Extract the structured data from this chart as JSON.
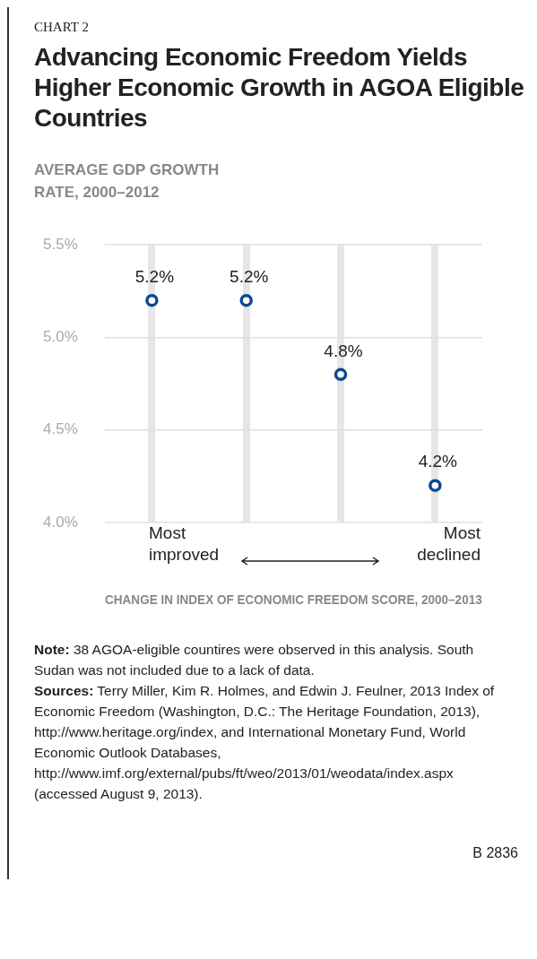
{
  "chart_data": {
    "type": "scatter",
    "subtitle": "CHART 2",
    "title": "Advancing Economic Freedom Yields Higher Economic Growth in AGOA Eligible Countries",
    "ylabel": "AVERAGE GDP GROWTH RATE, 2000–2012",
    "xlabel": "CHANGE IN INDEX OF ECONOMIC FREEDOM SCORE, 2000–2013",
    "categories": [
      null,
      null,
      null,
      null
    ],
    "series": [
      {
        "color": "#0b4a8f",
        "values": [
          5.2,
          5.2,
          4.8,
          4.2
        ],
        "value_labels": [
          "5.2%",
          "5.2%",
          "4.8%",
          "4.2%"
        ]
      }
    ],
    "ylim": [
      4.0,
      5.5
    ],
    "yticks": [
      {
        "value": 4.0,
        "label": "4.0%"
      },
      {
        "value": 4.5,
        "label": "4.5%"
      },
      {
        "value": 5.0,
        "label": "5.0%"
      },
      {
        "value": 5.5,
        "label": "5.5%"
      }
    ],
    "grid": true,
    "marker": "circle",
    "tick_labels": "y",
    "annotations": [
      "Most improved",
      "Most declined",
      "Note: 38 AGOA-eligible countires were observed in this analysis. South Sudan was not included due to a lack of data.",
      "Sources: Terry Miller, Kim R. Holmes, and Edwin J. Feulner, 2013 Index of Economic Freedom (Washington, D.C.: The Heritage Foundation, 2013), http://www.heritage.org/index, and International Monetary Fund, World Economic Outlook Databases, http://www.imf.org/external/pubs/ft/weo/2013/01/weodata/index.aspx (accessed August 9, 2013).",
      "B 2836"
    ]
  }
}
